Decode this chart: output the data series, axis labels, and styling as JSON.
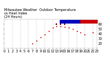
{
  "title": "Milwaukee Weather  Outdoor Temperature\nvs Heat Index\n(24 Hours)",
  "background_color": "#ffffff",
  "grid_color": "#bbbbbb",
  "hours": [
    0,
    1,
    2,
    3,
    4,
    5,
    6,
    7,
    8,
    9,
    10,
    11,
    12,
    13,
    14,
    15,
    16,
    17,
    18,
    19,
    20,
    21,
    22,
    23
  ],
  "temp": [
    null,
    null,
    null,
    null,
    null,
    null,
    null,
    20,
    25,
    32,
    38,
    45,
    52,
    56,
    55,
    54,
    52,
    50,
    45,
    42,
    38,
    null,
    42,
    null
  ],
  "heat_index": [
    null,
    null,
    null,
    null,
    null,
    null,
    null,
    null,
    null,
    null,
    null,
    null,
    null,
    60,
    60,
    60,
    null,
    null,
    null,
    null,
    null,
    null,
    null,
    null
  ],
  "temp_color": "#cc0000",
  "heat_color": "#8b0000",
  "legend_blue": "#0000bb",
  "legend_red": "#cc0000",
  "ylim": [
    10,
    70
  ],
  "xlim": [
    0,
    23
  ],
  "tick_fontsize": 3.5,
  "title_fontsize": 3.5,
  "marker_size": 1.5,
  "x_ticks": [
    0,
    1,
    2,
    3,
    4,
    5,
    6,
    7,
    8,
    9,
    10,
    11,
    12,
    13,
    14,
    15,
    16,
    17,
    18,
    19,
    20,
    21,
    22,
    23
  ],
  "x_tick_labels": [
    "0",
    "1",
    "2",
    "3",
    "4",
    "5",
    "6",
    "7",
    "8",
    "9",
    "10",
    "11",
    "12",
    "13",
    "14",
    "15",
    "16",
    "17",
    "18",
    "19",
    "20",
    "21",
    "22",
    "23"
  ],
  "y_ticks": [
    20,
    30,
    40,
    50,
    60
  ],
  "dashed_positions": [
    2,
    4,
    6,
    8,
    10,
    12,
    14,
    16,
    18,
    20,
    22
  ]
}
